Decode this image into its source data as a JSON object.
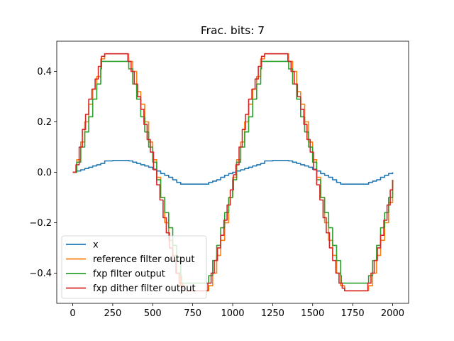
{
  "chart_data": {
    "type": "line",
    "title": "Frac. bits: 7",
    "xlabel": "",
    "ylabel": "",
    "xlim": [
      -100,
      2100
    ],
    "ylim": [
      -0.52,
      0.52
    ],
    "xticks": [
      0,
      250,
      500,
      750,
      1000,
      1250,
      1500,
      1750,
      2000
    ],
    "xtick_labels": [
      "0",
      "250",
      "500",
      "750",
      "1000",
      "1250",
      "1500",
      "1750",
      "2000"
    ],
    "yticks": [
      -0.4,
      -0.2,
      0.0,
      0.2,
      0.4
    ],
    "ytick_labels": [
      "−0.4",
      "−0.2",
      "0.0",
      "0.2",
      "0.4"
    ],
    "grid": false,
    "legend_position": "lower-left",
    "series": [
      {
        "name": "x",
        "color": "#1f77b4",
        "points": [
          [
            0,
            0
          ],
          [
            25,
            0.005
          ],
          [
            50,
            0.01
          ],
          [
            75,
            0.015
          ],
          [
            100,
            0.02
          ],
          [
            125,
            0.025
          ],
          [
            150,
            0.03
          ],
          [
            175,
            0.035
          ],
          [
            200,
            0.045
          ],
          [
            250,
            0.047
          ],
          [
            300,
            0.047
          ],
          [
            350,
            0.045
          ],
          [
            375,
            0.04
          ],
          [
            400,
            0.035
          ],
          [
            425,
            0.03
          ],
          [
            450,
            0.025
          ],
          [
            475,
            0.02
          ],
          [
            500,
            0.012
          ],
          [
            525,
            0.005
          ],
          [
            550,
            -0.005
          ],
          [
            575,
            -0.012
          ],
          [
            600,
            -0.02
          ],
          [
            625,
            -0.03
          ],
          [
            650,
            -0.04
          ],
          [
            675,
            -0.047
          ],
          [
            750,
            -0.047
          ],
          [
            825,
            -0.047
          ],
          [
            850,
            -0.04
          ],
          [
            875,
            -0.035
          ],
          [
            900,
            -0.03
          ],
          [
            925,
            -0.02
          ],
          [
            950,
            -0.012
          ],
          [
            975,
            -0.005
          ],
          [
            1000,
            0
          ],
          [
            1025,
            0.005
          ],
          [
            1050,
            0.01
          ],
          [
            1075,
            0.015
          ],
          [
            1100,
            0.02
          ],
          [
            1125,
            0.025
          ],
          [
            1150,
            0.03
          ],
          [
            1175,
            0.035
          ],
          [
            1200,
            0.045
          ],
          [
            1250,
            0.047
          ],
          [
            1300,
            0.047
          ],
          [
            1350,
            0.045
          ],
          [
            1375,
            0.04
          ],
          [
            1400,
            0.035
          ],
          [
            1425,
            0.03
          ],
          [
            1450,
            0.025
          ],
          [
            1475,
            0.02
          ],
          [
            1500,
            0.012
          ],
          [
            1525,
            0.005
          ],
          [
            1550,
            -0.005
          ],
          [
            1575,
            -0.012
          ],
          [
            1600,
            -0.02
          ],
          [
            1625,
            -0.03
          ],
          [
            1650,
            -0.04
          ],
          [
            1675,
            -0.047
          ],
          [
            1750,
            -0.047
          ],
          [
            1825,
            -0.047
          ],
          [
            1850,
            -0.04
          ],
          [
            1875,
            -0.035
          ],
          [
            1900,
            -0.03
          ],
          [
            1925,
            -0.02
          ],
          [
            1950,
            -0.012
          ],
          [
            1975,
            -0.005
          ],
          [
            2000,
            0
          ]
        ]
      },
      {
        "name": "reference filter output",
        "color": "#ff7f0e",
        "points": [
          [
            0,
            0
          ],
          [
            25,
            0.05
          ],
          [
            50,
            0.12
          ],
          [
            75,
            0.2
          ],
          [
            100,
            0.27
          ],
          [
            125,
            0.33
          ],
          [
            150,
            0.38
          ],
          [
            175,
            0.45
          ],
          [
            200,
            0.47
          ],
          [
            330,
            0.47
          ],
          [
            350,
            0.44
          ],
          [
            375,
            0.4
          ],
          [
            400,
            0.32
          ],
          [
            425,
            0.27
          ],
          [
            450,
            0.2
          ],
          [
            475,
            0.12
          ],
          [
            500,
            0.05
          ],
          [
            525,
            -0.02
          ],
          [
            550,
            -0.1
          ],
          [
            575,
            -0.2
          ],
          [
            600,
            -0.27
          ],
          [
            625,
            -0.33
          ],
          [
            650,
            -0.4
          ],
          [
            675,
            -0.45
          ],
          [
            700,
            -0.47
          ],
          [
            830,
            -0.47
          ],
          [
            850,
            -0.45
          ],
          [
            875,
            -0.4
          ],
          [
            900,
            -0.33
          ],
          [
            925,
            -0.27
          ],
          [
            950,
            -0.2
          ],
          [
            975,
            -0.1
          ],
          [
            1000,
            -0.02
          ],
          [
            1025,
            0.05
          ],
          [
            1050,
            0.12
          ],
          [
            1075,
            0.2
          ],
          [
            1100,
            0.27
          ],
          [
            1125,
            0.33
          ],
          [
            1150,
            0.38
          ],
          [
            1175,
            0.45
          ],
          [
            1200,
            0.47
          ],
          [
            1330,
            0.47
          ],
          [
            1350,
            0.44
          ],
          [
            1375,
            0.4
          ],
          [
            1400,
            0.32
          ],
          [
            1425,
            0.27
          ],
          [
            1450,
            0.2
          ],
          [
            1475,
            0.12
          ],
          [
            1500,
            0.05
          ],
          [
            1525,
            -0.02
          ],
          [
            1550,
            -0.1
          ],
          [
            1575,
            -0.2
          ],
          [
            1600,
            -0.27
          ],
          [
            1625,
            -0.33
          ],
          [
            1650,
            -0.4
          ],
          [
            1675,
            -0.45
          ],
          [
            1700,
            -0.47
          ],
          [
            1830,
            -0.47
          ],
          [
            1850,
            -0.45
          ],
          [
            1875,
            -0.4
          ],
          [
            1900,
            -0.33
          ],
          [
            1925,
            -0.27
          ],
          [
            1950,
            -0.2
          ],
          [
            1975,
            -0.12
          ],
          [
            2000,
            -0.03
          ]
        ]
      },
      {
        "name": "fxp filter output",
        "color": "#2ca02c",
        "points": [
          [
            0,
            0
          ],
          [
            25,
            0.04
          ],
          [
            50,
            0.1
          ],
          [
            75,
            0.16
          ],
          [
            100,
            0.22
          ],
          [
            125,
            0.29
          ],
          [
            150,
            0.35
          ],
          [
            175,
            0.41
          ],
          [
            180,
            0.44
          ],
          [
            340,
            0.44
          ],
          [
            350,
            0.41
          ],
          [
            375,
            0.35
          ],
          [
            400,
            0.29
          ],
          [
            425,
            0.22
          ],
          [
            450,
            0.16
          ],
          [
            475,
            0.1
          ],
          [
            500,
            0.04
          ],
          [
            525,
            -0.03
          ],
          [
            550,
            -0.1
          ],
          [
            575,
            -0.16
          ],
          [
            600,
            -0.22
          ],
          [
            625,
            -0.29
          ],
          [
            650,
            -0.35
          ],
          [
            675,
            -0.41
          ],
          [
            680,
            -0.44
          ],
          [
            840,
            -0.44
          ],
          [
            850,
            -0.41
          ],
          [
            875,
            -0.35
          ],
          [
            900,
            -0.29
          ],
          [
            925,
            -0.22
          ],
          [
            950,
            -0.16
          ],
          [
            975,
            -0.1
          ],
          [
            1000,
            -0.03
          ],
          [
            1025,
            0.04
          ],
          [
            1050,
            0.1
          ],
          [
            1075,
            0.16
          ],
          [
            1100,
            0.22
          ],
          [
            1125,
            0.29
          ],
          [
            1150,
            0.35
          ],
          [
            1175,
            0.41
          ],
          [
            1180,
            0.44
          ],
          [
            1340,
            0.44
          ],
          [
            1350,
            0.41
          ],
          [
            1375,
            0.35
          ],
          [
            1400,
            0.29
          ],
          [
            1425,
            0.22
          ],
          [
            1450,
            0.16
          ],
          [
            1475,
            0.1
          ],
          [
            1500,
            0.04
          ],
          [
            1525,
            -0.03
          ],
          [
            1550,
            -0.1
          ],
          [
            1575,
            -0.16
          ],
          [
            1600,
            -0.22
          ],
          [
            1625,
            -0.29
          ],
          [
            1650,
            -0.35
          ],
          [
            1675,
            -0.41
          ],
          [
            1680,
            -0.44
          ],
          [
            1840,
            -0.44
          ],
          [
            1850,
            -0.41
          ],
          [
            1875,
            -0.35
          ],
          [
            1900,
            -0.29
          ],
          [
            1925,
            -0.22
          ],
          [
            1950,
            -0.16
          ],
          [
            1975,
            -0.1
          ],
          [
            2000,
            -0.03
          ]
        ]
      },
      {
        "name": "fxp dither filter output",
        "color": "#d62728",
        "points": [
          [
            0,
            0
          ],
          [
            20,
            0.03
          ],
          [
            40,
            0.1
          ],
          [
            60,
            0.17
          ],
          [
            80,
            0.23
          ],
          [
            100,
            0.29
          ],
          [
            120,
            0.33
          ],
          [
            140,
            0.37
          ],
          [
            160,
            0.42
          ],
          [
            180,
            0.46
          ],
          [
            200,
            0.47
          ],
          [
            330,
            0.47
          ],
          [
            345,
            0.44
          ],
          [
            365,
            0.4
          ],
          [
            385,
            0.35
          ],
          [
            405,
            0.3
          ],
          [
            425,
            0.25
          ],
          [
            445,
            0.19
          ],
          [
            465,
            0.13
          ],
          [
            485,
            0.08
          ],
          [
            505,
            0.01
          ],
          [
            525,
            -0.05
          ],
          [
            545,
            -0.11
          ],
          [
            565,
            -0.18
          ],
          [
            585,
            -0.24
          ],
          [
            605,
            -0.3
          ],
          [
            625,
            -0.35
          ],
          [
            645,
            -0.4
          ],
          [
            665,
            -0.44
          ],
          [
            685,
            -0.46
          ],
          [
            700,
            -0.47
          ],
          [
            830,
            -0.47
          ],
          [
            845,
            -0.44
          ],
          [
            865,
            -0.4
          ],
          [
            885,
            -0.35
          ],
          [
            905,
            -0.3
          ],
          [
            925,
            -0.25
          ],
          [
            945,
            -0.19
          ],
          [
            965,
            -0.13
          ],
          [
            985,
            -0.07
          ],
          [
            1005,
            -0.01
          ],
          [
            1020,
            0.03
          ],
          [
            1040,
            0.1
          ],
          [
            1060,
            0.17
          ],
          [
            1080,
            0.23
          ],
          [
            1100,
            0.29
          ],
          [
            1120,
            0.33
          ],
          [
            1140,
            0.37
          ],
          [
            1160,
            0.42
          ],
          [
            1180,
            0.46
          ],
          [
            1200,
            0.47
          ],
          [
            1330,
            0.47
          ],
          [
            1345,
            0.44
          ],
          [
            1365,
            0.4
          ],
          [
            1385,
            0.35
          ],
          [
            1405,
            0.3
          ],
          [
            1425,
            0.25
          ],
          [
            1445,
            0.19
          ],
          [
            1465,
            0.13
          ],
          [
            1485,
            0.08
          ],
          [
            1505,
            0.01
          ],
          [
            1525,
            -0.05
          ],
          [
            1545,
            -0.11
          ],
          [
            1565,
            -0.18
          ],
          [
            1585,
            -0.24
          ],
          [
            1605,
            -0.3
          ],
          [
            1625,
            -0.35
          ],
          [
            1645,
            -0.4
          ],
          [
            1665,
            -0.44
          ],
          [
            1685,
            -0.46
          ],
          [
            1700,
            -0.47
          ],
          [
            1830,
            -0.47
          ],
          [
            1845,
            -0.44
          ],
          [
            1865,
            -0.4
          ],
          [
            1885,
            -0.35
          ],
          [
            1905,
            -0.3
          ],
          [
            1925,
            -0.25
          ],
          [
            1945,
            -0.19
          ],
          [
            1965,
            -0.13
          ],
          [
            1985,
            -0.07
          ],
          [
            2000,
            -0.03
          ]
        ]
      }
    ]
  }
}
